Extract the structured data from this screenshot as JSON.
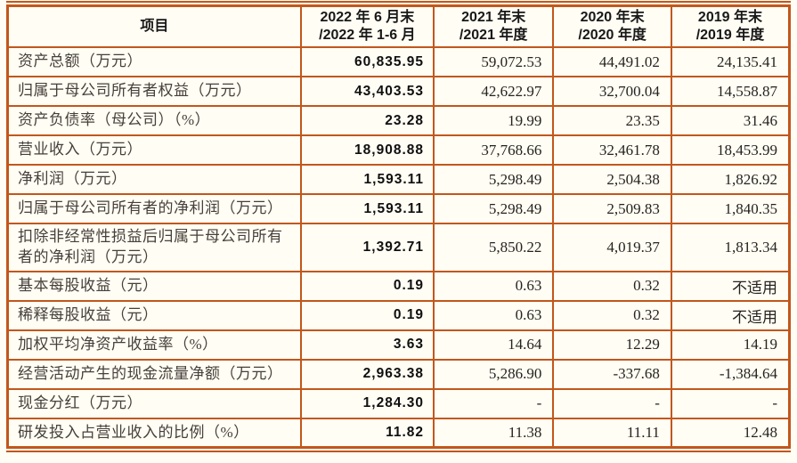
{
  "table": {
    "colors": {
      "border": "#c2571b",
      "label_text": "#46403a",
      "number_text": "#26231f",
      "bold_number_text": "#0f0f0f",
      "background": "#fffdf4"
    },
    "header": {
      "item_label": "项目",
      "periods": [
        {
          "line1": "2022 年 6 月末",
          "line2": "/2022 年 1-6 月"
        },
        {
          "line1": "2021 年末",
          "line2": "/2021 年度"
        },
        {
          "line1": "2020 年末",
          "line2": "/2020 年度"
        },
        {
          "line1": "2019 年末",
          "line2": "/2019 年度"
        }
      ]
    },
    "rows": [
      {
        "label": "资产总额（万元）",
        "values": [
          "60,835.95",
          "59,072.53",
          "44,491.02",
          "24,135.41"
        ],
        "tall": false
      },
      {
        "label": "归属于母公司所有者权益（万元）",
        "values": [
          "43,403.53",
          "42,622.97",
          "32,700.04",
          "14,558.87"
        ],
        "tall": false
      },
      {
        "label": "资产负债率（母公司）（%）",
        "values": [
          "23.28",
          "19.99",
          "23.35",
          "31.46"
        ],
        "tall": false
      },
      {
        "label": "营业收入（万元）",
        "values": [
          "18,908.88",
          "37,768.66",
          "32,461.78",
          "18,453.99"
        ],
        "tall": false
      },
      {
        "label": "净利润（万元）",
        "values": [
          "1,593.11",
          "5,298.49",
          "2,504.38",
          "1,826.92"
        ],
        "tall": false
      },
      {
        "label": "归属于母公司所有者的净利润（万元）",
        "values": [
          "1,593.11",
          "5,298.49",
          "2,509.83",
          "1,840.35"
        ],
        "tall": false
      },
      {
        "label": "扣除非经常性损益后归属于母公司所有者的净利润（万元）",
        "values": [
          "1,392.71",
          "5,850.22",
          "4,019.37",
          "1,813.34"
        ],
        "tall": true
      },
      {
        "label": "基本每股收益（元）",
        "values": [
          "0.19",
          "0.63",
          "0.32",
          "不适用"
        ],
        "tall": false
      },
      {
        "label": "稀释每股收益（元）",
        "values": [
          "0.19",
          "0.63",
          "0.32",
          "不适用"
        ],
        "tall": false
      },
      {
        "label": "加权平均净资产收益率（%）",
        "values": [
          "3.63",
          "14.64",
          "12.29",
          "14.19"
        ],
        "tall": false
      },
      {
        "label": "经营活动产生的现金流量净额（万元）",
        "values": [
          "2,963.38",
          "5,286.90",
          "-337.68",
          "-1,384.64"
        ],
        "tall": false
      },
      {
        "label": "现金分红（万元）",
        "values": [
          "1,284.30",
          "-",
          "-",
          "-"
        ],
        "tall": false
      },
      {
        "label": "研发投入占营业收入的比例（%）",
        "values": [
          "11.82",
          "11.38",
          "11.11",
          "12.48"
        ],
        "tall": false
      }
    ]
  }
}
